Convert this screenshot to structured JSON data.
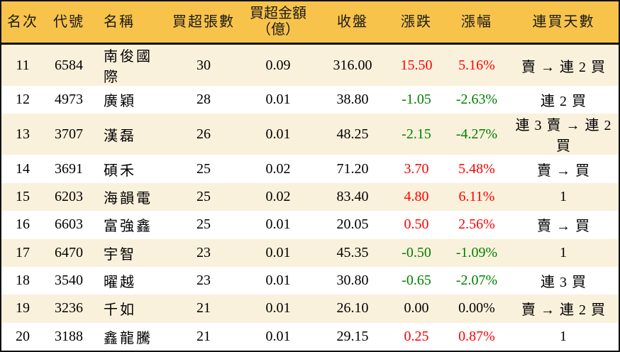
{
  "colors": {
    "header_bg": "#F8C34B",
    "row_alt_bg": "#FAF1DC",
    "up": "#FF0000",
    "down": "#008000"
  },
  "chart_data": {
    "type": "table",
    "title": "",
    "columns": [
      {
        "key": "rank",
        "label": "名次"
      },
      {
        "key": "code",
        "label": "代號"
      },
      {
        "key": "name",
        "label": "名稱"
      },
      {
        "key": "volume",
        "label": "買超張數"
      },
      {
        "key": "amount",
        "label": "買超金額",
        "label2": "（億）"
      },
      {
        "key": "close",
        "label": "收盤"
      },
      {
        "key": "change",
        "label": "漲跌"
      },
      {
        "key": "change_pct",
        "label": "漲幅"
      },
      {
        "key": "streak",
        "label": "連買天數"
      }
    ],
    "rows": [
      {
        "rank": "11",
        "code": "6584",
        "name": "南俊國際",
        "volume": "30",
        "amount": "0.09",
        "close": "316.00",
        "change": "15.50",
        "change_pct": "5.16%",
        "streak": "賣 → 連 2 買",
        "trend": "up"
      },
      {
        "rank": "12",
        "code": "4973",
        "name": "廣穎",
        "volume": "28",
        "amount": "0.01",
        "close": "38.80",
        "change": "-1.05",
        "change_pct": "-2.63%",
        "streak": "連 2 買",
        "trend": "down"
      },
      {
        "rank": "13",
        "code": "3707",
        "name": "漢磊",
        "volume": "26",
        "amount": "0.01",
        "close": "48.25",
        "change": "-2.15",
        "change_pct": "-4.27%",
        "streak": "連 3 賣 → 連 2 買",
        "trend": "down"
      },
      {
        "rank": "14",
        "code": "3691",
        "name": "碩禾",
        "volume": "25",
        "amount": "0.02",
        "close": "71.20",
        "change": "3.70",
        "change_pct": "5.48%",
        "streak": "賣 → 買",
        "trend": "up"
      },
      {
        "rank": "15",
        "code": "6203",
        "name": "海韻電",
        "volume": "25",
        "amount": "0.02",
        "close": "83.40",
        "change": "4.80",
        "change_pct": "6.11%",
        "streak": "1",
        "trend": "up"
      },
      {
        "rank": "16",
        "code": "6603",
        "name": "富強鑫",
        "volume": "25",
        "amount": "0.01",
        "close": "20.05",
        "change": "0.50",
        "change_pct": "2.56%",
        "streak": "賣 → 買",
        "trend": "up"
      },
      {
        "rank": "17",
        "code": "6470",
        "name": "宇智",
        "volume": "23",
        "amount": "0.01",
        "close": "45.35",
        "change": "-0.50",
        "change_pct": "-1.09%",
        "streak": "1",
        "trend": "down"
      },
      {
        "rank": "18",
        "code": "3540",
        "name": "曜越",
        "volume": "23",
        "amount": "0.01",
        "close": "30.80",
        "change": "-0.65",
        "change_pct": "-2.07%",
        "streak": "連 3 買",
        "trend": "down"
      },
      {
        "rank": "19",
        "code": "3236",
        "name": "千如",
        "volume": "21",
        "amount": "0.01",
        "close": "26.10",
        "change": "0.00",
        "change_pct": "0.00%",
        "streak": "賣 → 連 2 買",
        "trend": "flat"
      },
      {
        "rank": "20",
        "code": "3188",
        "name": "鑫龍騰",
        "volume": "21",
        "amount": "0.01",
        "close": "29.15",
        "change": "0.25",
        "change_pct": "0.87%",
        "streak": "1",
        "trend": "up"
      }
    ]
  }
}
